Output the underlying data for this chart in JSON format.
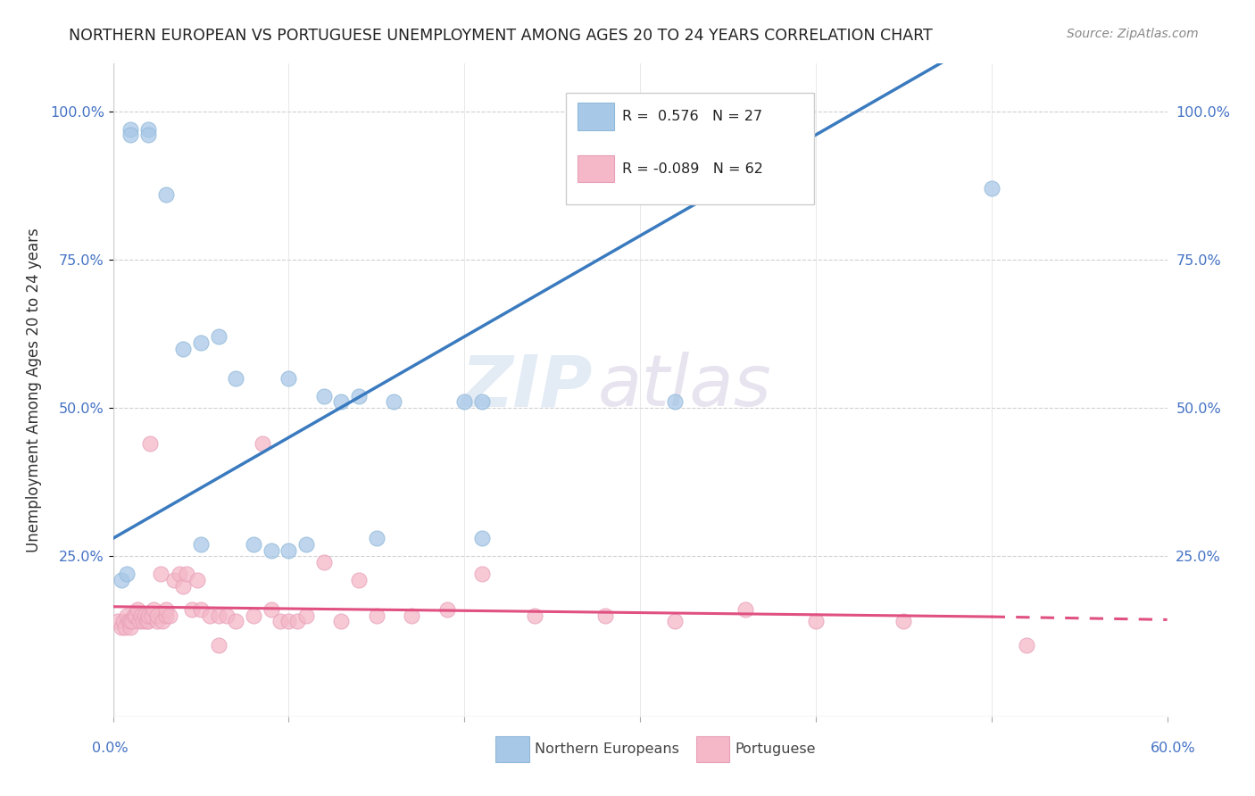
{
  "title": "NORTHERN EUROPEAN VS PORTUGUESE UNEMPLOYMENT AMONG AGES 20 TO 24 YEARS CORRELATION CHART",
  "source": "Source: ZipAtlas.com",
  "ylabel": "Unemployment Among Ages 20 to 24 years",
  "xlim": [
    0,
    0.6
  ],
  "ylim": [
    -0.02,
    1.08
  ],
  "blue_R": 0.576,
  "blue_N": 27,
  "pink_R": -0.089,
  "pink_N": 62,
  "blue_color": "#a8c8e8",
  "pink_color": "#f4b8c8",
  "blue_line_color": "#3a7abf",
  "pink_line_color": "#e05080",
  "watermark_zip": "ZIP",
  "watermark_atlas": "atlas",
  "blue_line_x": [
    0.0,
    0.6
  ],
  "blue_line_y": [
    0.28,
    1.3
  ],
  "pink_line_x0": 0.0,
  "pink_line_x1": 0.5,
  "pink_line_x2": 0.6,
  "pink_line_y0": 0.165,
  "pink_line_y1": 0.148,
  "pink_line_y2": 0.143,
  "blue_scatter_x": [
    0.005,
    0.008,
    0.01,
    0.01,
    0.02,
    0.02,
    0.03,
    0.04,
    0.05,
    0.05,
    0.06,
    0.07,
    0.08,
    0.09,
    0.1,
    0.1,
    0.11,
    0.12,
    0.13,
    0.14,
    0.15,
    0.16,
    0.2,
    0.21,
    0.21,
    0.32,
    0.5
  ],
  "blue_scatter_y": [
    0.21,
    0.22,
    0.97,
    0.96,
    0.97,
    0.96,
    0.86,
    0.6,
    0.61,
    0.27,
    0.62,
    0.55,
    0.27,
    0.26,
    0.55,
    0.26,
    0.27,
    0.52,
    0.51,
    0.52,
    0.28,
    0.51,
    0.51,
    0.28,
    0.51,
    0.51,
    0.87
  ],
  "pink_scatter_x": [
    0.003,
    0.005,
    0.006,
    0.007,
    0.008,
    0.009,
    0.01,
    0.01,
    0.011,
    0.012,
    0.013,
    0.014,
    0.015,
    0.016,
    0.017,
    0.018,
    0.019,
    0.02,
    0.02,
    0.021,
    0.022,
    0.023,
    0.025,
    0.025,
    0.027,
    0.028,
    0.03,
    0.03,
    0.032,
    0.035,
    0.038,
    0.04,
    0.042,
    0.045,
    0.048,
    0.05,
    0.055,
    0.06,
    0.06,
    0.065,
    0.07,
    0.08,
    0.085,
    0.09,
    0.095,
    0.1,
    0.105,
    0.11,
    0.12,
    0.13,
    0.14,
    0.15,
    0.17,
    0.19,
    0.21,
    0.24,
    0.28,
    0.32,
    0.36,
    0.4,
    0.45,
    0.52
  ],
  "pink_scatter_y": [
    0.14,
    0.13,
    0.14,
    0.13,
    0.15,
    0.14,
    0.13,
    0.14,
    0.14,
    0.15,
    0.15,
    0.16,
    0.14,
    0.15,
    0.14,
    0.15,
    0.14,
    0.14,
    0.15,
    0.44,
    0.15,
    0.16,
    0.14,
    0.15,
    0.22,
    0.14,
    0.15,
    0.16,
    0.15,
    0.21,
    0.22,
    0.2,
    0.22,
    0.16,
    0.21,
    0.16,
    0.15,
    0.1,
    0.15,
    0.15,
    0.14,
    0.15,
    0.44,
    0.16,
    0.14,
    0.14,
    0.14,
    0.15,
    0.24,
    0.14,
    0.21,
    0.15,
    0.15,
    0.16,
    0.22,
    0.15,
    0.15,
    0.14,
    0.16,
    0.14,
    0.14,
    0.1
  ]
}
